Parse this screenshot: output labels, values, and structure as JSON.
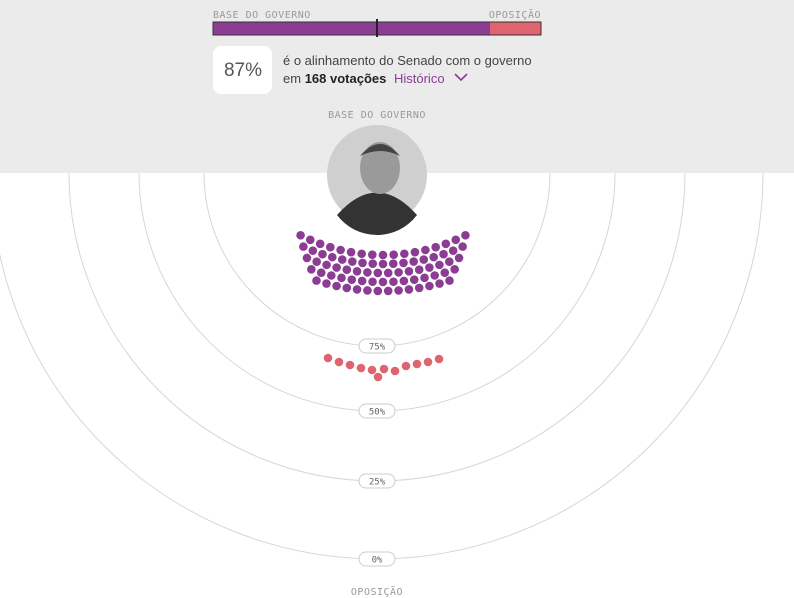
{
  "header": {
    "bar_left_label": "BASE DO GOVERNO",
    "bar_right_label": "OPOSIÇÃO",
    "alignment_value": "87%",
    "line1": "é o alinhamento do Senado com o governo",
    "line2_prefix": "em",
    "votes": "168 votações",
    "history_link": "Histórico"
  },
  "diagram": {
    "top_label": "BASE DO GOVERNO",
    "bottom_label": "OPOSIÇÃO",
    "rings": [
      "75%",
      "50%",
      "25%",
      "0%"
    ]
  }
}
